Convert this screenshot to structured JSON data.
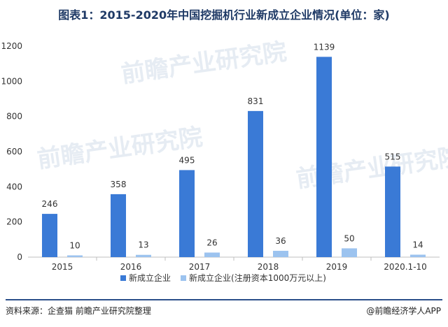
{
  "header": {
    "title": "图表1：2015-2020年中国挖掘机行业新成立企业情况(单位：家)"
  },
  "footer": {
    "source": "资料来源：企查猫 前瞻产业研究院整理",
    "brand": "@前瞻经济学人APP"
  },
  "watermark": {
    "text": "前瞻产业研究院"
  },
  "colors": {
    "series1": "#3a7ad6",
    "series2": "#9cc3ef",
    "axis": "#bfbfbf",
    "watermark": "#e6ecf3"
  },
  "chart_data": {
    "type": "bar",
    "title": "图表1：2015-2020年中国挖掘机行业新成立企业情况(单位：家)",
    "categories": [
      "2015",
      "2016",
      "2017",
      "2018",
      "2019",
      "2020.1-10"
    ],
    "series": [
      {
        "name": "新成立企业",
        "values": [
          246,
          358,
          495,
          831,
          1139,
          515
        ]
      },
      {
        "name": "新成立企业(注册资本1000万元以上)",
        "values": [
          10,
          13,
          26,
          36,
          50,
          14
        ]
      }
    ],
    "ylim": [
      0,
      1200
    ],
    "yticks": [
      0,
      200,
      400,
      600,
      800,
      1000,
      1200
    ],
    "grid": false,
    "legend": "bottom"
  }
}
